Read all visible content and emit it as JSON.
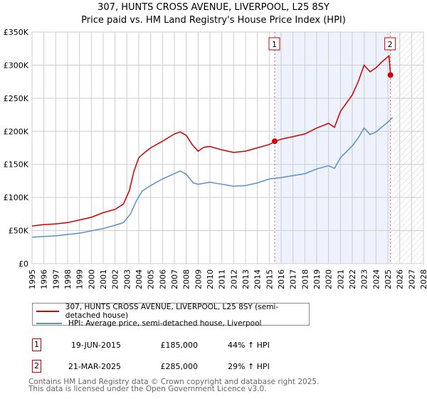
{
  "chart_data": {
    "type": "line",
    "title": "307, HUNTS CROSS AVENUE, LIVERPOOL, L25 8SY",
    "subtitle": "Price paid vs. HM Land Registry's House Price Index (HPI)",
    "xlim": [
      1995,
      2028
    ],
    "ylim": [
      0,
      350000
    ],
    "x_ticks": [
      "1995",
      "1996",
      "1997",
      "1998",
      "1999",
      "2000",
      "2001",
      "2002",
      "2003",
      "2004",
      "2005",
      "2006",
      "2007",
      "2008",
      "2009",
      "2010",
      "2011",
      "2012",
      "2013",
      "2014",
      "2015",
      "2016",
      "2017",
      "2018",
      "2019",
      "2020",
      "2021",
      "2022",
      "2023",
      "2024",
      "2025",
      "2026",
      "2027",
      "2028"
    ],
    "y_ticks": [
      {
        "v": 0,
        "label": "£0"
      },
      {
        "v": 50000,
        "label": "£50K"
      },
      {
        "v": 100000,
        "label": "£100K"
      },
      {
        "v": 150000,
        "label": "£150K"
      },
      {
        "v": 200000,
        "label": "£200K"
      },
      {
        "v": 250000,
        "label": "£250K"
      },
      {
        "v": 300000,
        "label": "£300K"
      },
      {
        "v": 350000,
        "label": "£350K"
      }
    ],
    "grid": true,
    "series": [
      {
        "name": "307, HUNTS CROSS AVENUE, LIVERPOOL, L25 8SY (semi-detached house)",
        "color": "#cc0000",
        "x": [
          1995,
          1996,
          1997,
          1998,
          1999,
          2000,
          2001,
          2002,
          2002.7,
          2003.2,
          2003.6,
          2004,
          2004.5,
          2005,
          2006,
          2007,
          2007.5,
          2008,
          2008.5,
          2009,
          2009.5,
          2010,
          2011,
          2012,
          2013,
          2014,
          2015,
          2015.5,
          2016,
          2017,
          2018,
          2019,
          2020,
          2020.5,
          2021,
          2022,
          2022.5,
          2023,
          2023.5,
          2024,
          2024.5,
          2025.1,
          2025.22
        ],
        "y": [
          57000,
          59000,
          60000,
          62000,
          66000,
          70000,
          77000,
          82000,
          90000,
          110000,
          140000,
          160000,
          168000,
          175000,
          185000,
          196000,
          199000,
          194000,
          180000,
          170000,
          176000,
          177000,
          172000,
          168000,
          170000,
          175000,
          180000,
          185000,
          188000,
          192000,
          196000,
          205000,
          212000,
          206000,
          230000,
          255000,
          275000,
          300000,
          290000,
          296000,
          305000,
          314000,
          285000
        ]
      },
      {
        "name": "HPI: Average price, semi-detached house, Liverpool",
        "color": "#5b8fd0",
        "x": [
          1995,
          1997,
          1999,
          2001,
          2002,
          2002.7,
          2003.3,
          2003.8,
          2004.3,
          2005,
          2006,
          2007,
          2007.5,
          2008,
          2008.6,
          2009,
          2010,
          2011,
          2012,
          2013,
          2014,
          2015,
          2016,
          2017,
          2018,
          2019,
          2020,
          2020.5,
          2021,
          2022,
          2022.5,
          2023,
          2023.5,
          2024,
          2025,
          2025.4
        ],
        "y": [
          40000,
          42000,
          46000,
          53000,
          58000,
          62000,
          75000,
          95000,
          110000,
          118000,
          128000,
          136000,
          140000,
          135000,
          122000,
          120000,
          123000,
          120000,
          117000,
          118000,
          122000,
          128000,
          130000,
          133000,
          136000,
          143000,
          148000,
          144000,
          160000,
          178000,
          190000,
          205000,
          195000,
          199000,
          214000,
          221000
        ]
      }
    ],
    "sales": [
      {
        "label": "1",
        "date": "19-JUN-2015",
        "x": 2015.46,
        "price": "£185,000",
        "value": 185000,
        "hpi": "44% ↑ HPI"
      },
      {
        "label": "2",
        "date": "21-MAR-2025",
        "x": 2025.22,
        "price": "£285,000",
        "value": 285000,
        "hpi": "29% ↑ HPI"
      }
    ]
  },
  "footer": [
    "Contains HM Land Registry data © Crown copyright and database right 2025.",
    "This data is licensed under the Open Government Licence v3.0."
  ]
}
